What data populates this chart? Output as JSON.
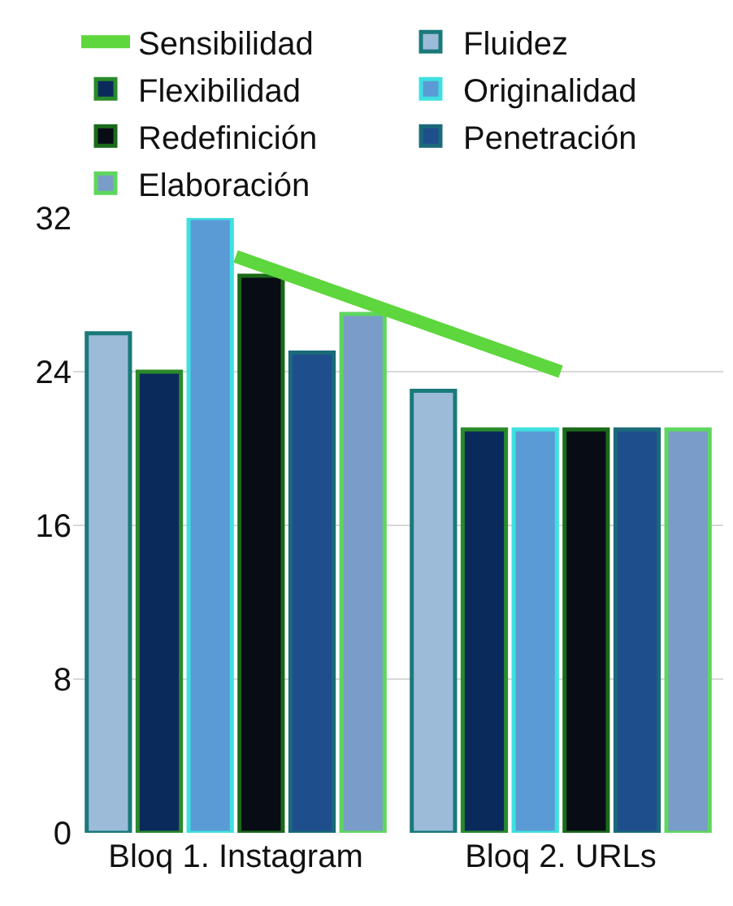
{
  "chart_data": {
    "type": "bar",
    "categories": [
      "Bloq 1. Instagram",
      "Bloq 2. URLs"
    ],
    "series": [
      {
        "name": "Sensibilidad",
        "type": "line",
        "color": "#5ed63e",
        "values": [
          30,
          24
        ]
      },
      {
        "name": "Fluidez",
        "color": "#9bbbd9",
        "values": [
          26,
          23
        ]
      },
      {
        "name": "Flexibilidad",
        "color": "#0a2a5c",
        "values": [
          24,
          21
        ]
      },
      {
        "name": "Originalidad",
        "color": "#5b9bd5",
        "values": [
          32,
          21
        ]
      },
      {
        "name": "Redefinición",
        "color": "#080c14",
        "values": [
          29,
          21
        ]
      },
      {
        "name": "Penetración",
        "color": "#1f4e8c",
        "values": [
          25,
          21
        ]
      },
      {
        "name": "Elaboración",
        "color": "#7a9cc8",
        "values": [
          27,
          21
        ]
      }
    ],
    "ylim": [
      0,
      32
    ],
    "yticks": [
      0,
      8,
      16,
      24,
      32
    ],
    "grid": "y",
    "legend": "top"
  }
}
